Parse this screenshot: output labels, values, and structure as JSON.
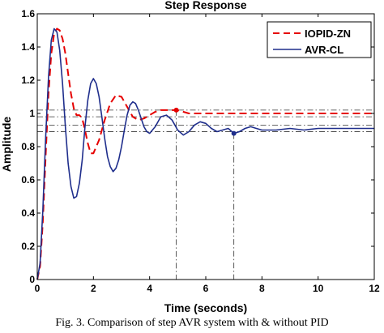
{
  "caption": "Fig. 3. Comparison of step AVR system with & without PID",
  "colors": {
    "iopid": "#e60000",
    "avr": "#1f2e8c",
    "reference": "#333333"
  },
  "chart_data": {
    "type": "line",
    "title": "Step Response",
    "xlabel": "Time (seconds)",
    "ylabel": "Amplitude",
    "xlim": [
      0,
      12
    ],
    "ylim": [
      0,
      1.6
    ],
    "xticks": [
      0,
      2,
      4,
      6,
      8,
      10,
      12
    ],
    "yticks": [
      0,
      0.2,
      0.4,
      0.6,
      0.8,
      1,
      1.2,
      1.4,
      1.6
    ],
    "grid": false,
    "legend_position": "top-right",
    "series": [
      {
        "name": "IOPID-ZN",
        "style": "dashed",
        "color": "#e60000",
        "x": [
          0,
          0.1,
          0.2,
          0.3,
          0.4,
          0.5,
          0.6,
          0.7,
          0.8,
          0.9,
          1.0,
          1.1,
          1.2,
          1.3,
          1.4,
          1.5,
          1.6,
          1.7,
          1.8,
          1.9,
          2.0,
          2.2,
          2.4,
          2.6,
          2.8,
          3.0,
          3.2,
          3.4,
          3.6,
          3.8,
          4.0,
          4.2,
          4.4,
          4.6,
          4.8,
          5.0,
          5.2,
          5.4,
          5.6,
          5.8,
          6.0,
          6.5,
          7.0,
          7.5,
          8.0,
          9.0,
          10.0,
          11.0,
          12.0
        ],
        "y": [
          0,
          0.08,
          0.35,
          0.75,
          1.12,
          1.36,
          1.48,
          1.51,
          1.5,
          1.45,
          1.36,
          1.24,
          1.12,
          1.03,
          0.99,
          0.99,
          0.97,
          0.9,
          0.82,
          0.76,
          0.76,
          0.84,
          0.96,
          1.06,
          1.11,
          1.1,
          1.04,
          0.98,
          0.96,
          0.97,
          0.99,
          1.01,
          1.02,
          1.02,
          1.02,
          1.02,
          1.01,
          1.0,
          1.0,
          1.0,
          1.0,
          1.0,
          1.0,
          1.0,
          1.0,
          1.0,
          1.0,
          1.0,
          1.0
        ]
      },
      {
        "name": "AVR-CL",
        "style": "solid",
        "color": "#1f2e8c",
        "x": [
          0,
          0.1,
          0.2,
          0.3,
          0.4,
          0.5,
          0.6,
          0.7,
          0.8,
          0.9,
          1.0,
          1.1,
          1.2,
          1.3,
          1.4,
          1.5,
          1.6,
          1.7,
          1.8,
          1.9,
          2.0,
          2.1,
          2.2,
          2.3,
          2.4,
          2.5,
          2.6,
          2.7,
          2.8,
          2.9,
          3.0,
          3.1,
          3.2,
          3.3,
          3.4,
          3.5,
          3.6,
          3.7,
          3.8,
          3.9,
          4.0,
          4.2,
          4.4,
          4.6,
          4.8,
          5.0,
          5.2,
          5.4,
          5.6,
          5.8,
          6.0,
          6.2,
          6.4,
          6.6,
          6.8,
          7.0,
          7.2,
          7.4,
          7.6,
          7.8,
          8.0,
          8.5,
          9.0,
          9.5,
          10.0,
          10.5,
          11.0,
          11.5,
          12.0
        ],
        "y": [
          0,
          0.1,
          0.42,
          0.86,
          1.22,
          1.44,
          1.51,
          1.49,
          1.38,
          1.18,
          0.92,
          0.7,
          0.56,
          0.49,
          0.5,
          0.58,
          0.72,
          0.92,
          1.08,
          1.18,
          1.21,
          1.18,
          1.1,
          0.98,
          0.85,
          0.74,
          0.68,
          0.65,
          0.67,
          0.72,
          0.8,
          0.9,
          0.99,
          1.05,
          1.07,
          1.06,
          1.02,
          0.97,
          0.92,
          0.89,
          0.88,
          0.92,
          0.98,
          0.99,
          0.96,
          0.9,
          0.87,
          0.89,
          0.93,
          0.95,
          0.94,
          0.91,
          0.89,
          0.9,
          0.91,
          0.88,
          0.89,
          0.91,
          0.92,
          0.91,
          0.9,
          0.9,
          0.91,
          0.9,
          0.91,
          0.91,
          0.91,
          0.91,
          0.91
        ]
      }
    ],
    "reference_lines": {
      "horizontal": [
        1.02,
        0.98,
        0.93,
        0.89
      ],
      "vertical": [
        4.95,
        7.0
      ],
      "markers": [
        {
          "series": "IOPID-ZN",
          "x": 4.95,
          "y": 1.02
        },
        {
          "series": "AVR-CL",
          "x": 7.0,
          "y": 0.88
        }
      ]
    }
  }
}
